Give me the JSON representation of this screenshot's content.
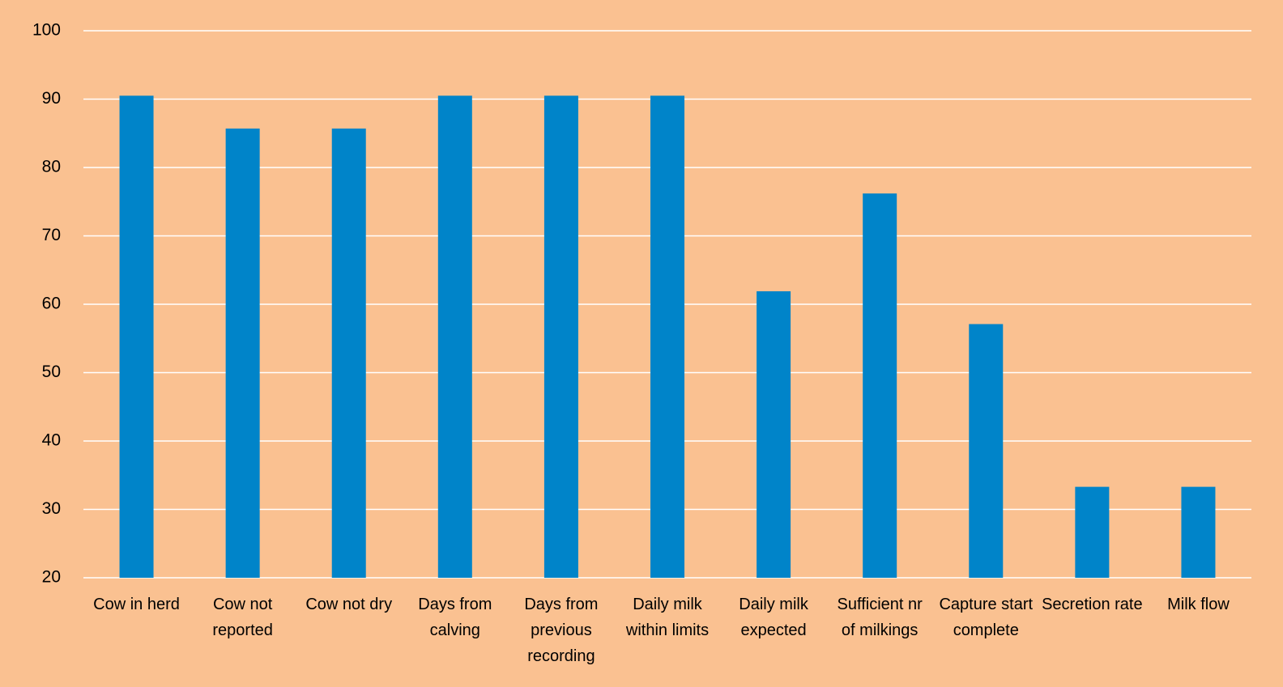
{
  "chart_data": {
    "type": "bar",
    "categories": [
      "Cow in herd",
      "Cow not reported",
      "Cow not dry",
      "Days from calving",
      "Days from previous recording",
      "Daily milk within limits",
      "Daily milk expected",
      "Sufficient nr of milkings",
      "Capture start complete",
      "Secretion rate",
      "Milk flow"
    ],
    "values": [
      90.5,
      85.7,
      85.7,
      90.5,
      90.5,
      90.5,
      61.9,
      76.2,
      57.1,
      33.3,
      33.3
    ],
    "color": "#0084c9",
    "ylim": [
      20,
      100
    ],
    "yticks": [
      20,
      30,
      40,
      50,
      60,
      70,
      80,
      90,
      100
    ],
    "grid": true
  }
}
